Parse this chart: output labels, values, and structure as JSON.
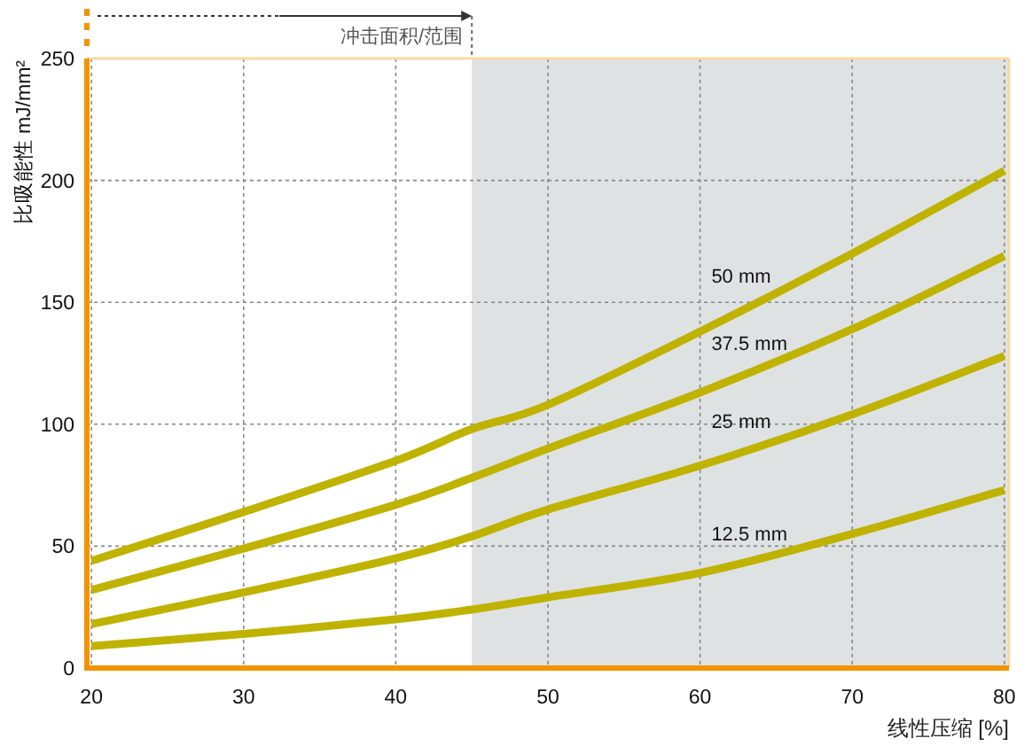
{
  "chart_data": {
    "type": "line",
    "xlabel": "线性压缩 [%]",
    "ylabel": "比吸能性 mJ/mm²",
    "x": [
      20,
      30,
      40,
      45,
      50,
      60,
      70,
      80
    ],
    "series": [
      {
        "name": "50 mm",
        "color": "#bfb300",
        "values": [
          44,
          64,
          85,
          98,
          108,
          138,
          170,
          204
        ]
      },
      {
        "name": "37.5 mm",
        "color": "#bfb300",
        "values": [
          32,
          49,
          67,
          78,
          90,
          113,
          139,
          169
        ]
      },
      {
        "name": "25 mm",
        "color": "#bfb300",
        "values": [
          18,
          31,
          45,
          54,
          65,
          83,
          104,
          128
        ]
      },
      {
        "name": "12.5 mm",
        "color": "#bfb300",
        "values": [
          9,
          14,
          20,
          24,
          29,
          39,
          55,
          73
        ]
      }
    ],
    "xlim": [
      19.7,
      80.3
    ],
    "ylim": [
      0,
      250
    ],
    "xticks": [
      20,
      30,
      40,
      50,
      60,
      70,
      80
    ],
    "yticks": [
      0,
      50,
      100,
      150,
      200,
      250
    ],
    "grid": true,
    "line_style": "solid",
    "marker": "none",
    "bands": [
      {
        "axis": "x",
        "from": 45,
        "to": 80.3,
        "color": "#dfe2e3"
      }
    ],
    "annotations": [
      "冲击面积/范围"
    ]
  }
}
